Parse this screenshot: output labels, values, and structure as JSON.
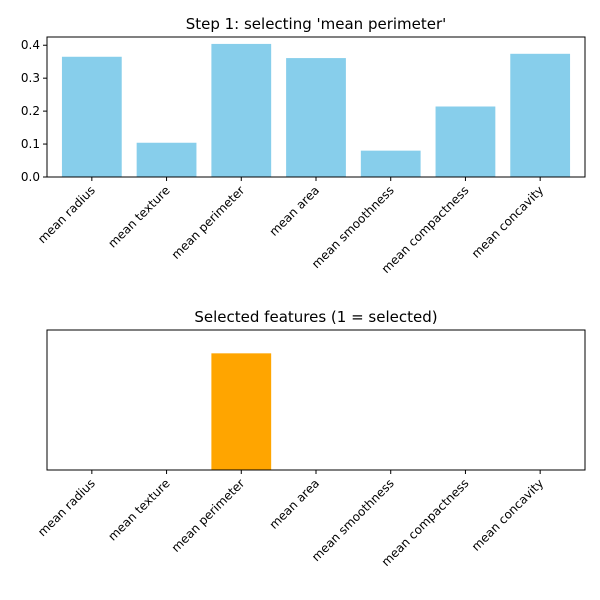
{
  "chart_data": [
    {
      "type": "bar",
      "title": "Step 1: selecting 'mean perimeter'",
      "categories": [
        "mean radius",
        "mean texture",
        "mean perimeter",
        "mean area",
        "mean smoothness",
        "mean compactness",
        "mean concavity"
      ],
      "values": [
        0.365,
        0.104,
        0.404,
        0.361,
        0.08,
        0.214,
        0.374
      ],
      "ylim": [
        0,
        0.425
      ],
      "yticks": [
        "0.0",
        "0.1",
        "0.2",
        "0.3",
        "0.4"
      ],
      "ytick_values": [
        0,
        0.1,
        0.2,
        0.3,
        0.4
      ],
      "color": "#87ceeb",
      "grid": false
    },
    {
      "type": "bar",
      "title": "Selected features (1 = selected)",
      "categories": [
        "mean radius",
        "mean texture",
        "mean perimeter",
        "mean area",
        "mean smoothness",
        "mean compactness",
        "mean concavity"
      ],
      "values": [
        0,
        0,
        1,
        0,
        0,
        0,
        0
      ],
      "ylim": [
        0,
        1.2
      ],
      "yticks": [],
      "color": "#ffa500",
      "grid": false
    }
  ]
}
